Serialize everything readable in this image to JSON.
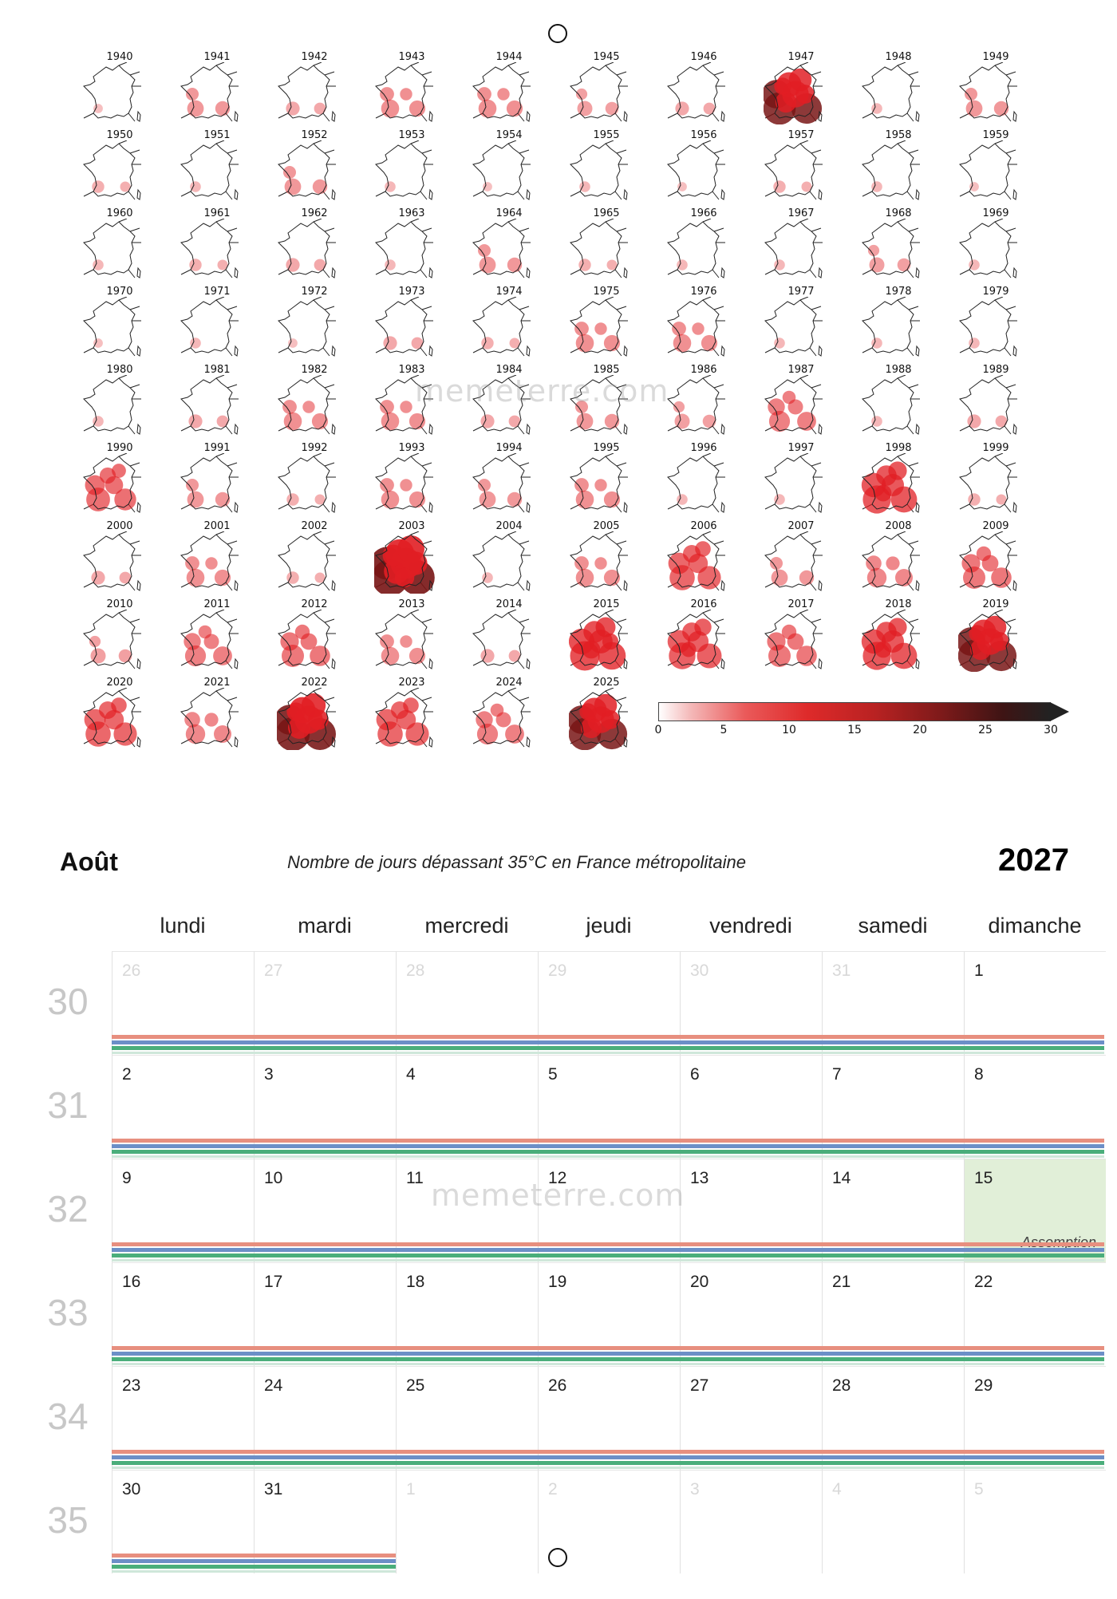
{
  "maps": {
    "years": [
      1940,
      1941,
      1942,
      1943,
      1944,
      1945,
      1946,
      1947,
      1948,
      1949,
      1950,
      1951,
      1952,
      1953,
      1954,
      1955,
      1956,
      1957,
      1958,
      1959,
      1960,
      1961,
      1962,
      1963,
      1964,
      1965,
      1966,
      1967,
      1968,
      1969,
      1970,
      1971,
      1972,
      1973,
      1974,
      1975,
      1976,
      1977,
      1978,
      1979,
      1980,
      1981,
      1982,
      1983,
      1984,
      1985,
      1986,
      1987,
      1988,
      1989,
      1990,
      1991,
      1992,
      1993,
      1994,
      1995,
      1996,
      1997,
      1998,
      1999,
      2000,
      2001,
      2002,
      2003,
      2004,
      2005,
      2006,
      2007,
      2008,
      2009,
      2010,
      2011,
      2012,
      2013,
      2014,
      2015,
      2016,
      2017,
      2018,
      2019,
      2020,
      2021,
      2022,
      2023,
      2024,
      2025
    ],
    "intensity": [
      0.05,
      0.3,
      0.2,
      0.35,
      0.35,
      0.25,
      0.2,
      0.85,
      0.1,
      0.3,
      0.15,
      0.1,
      0.3,
      0.1,
      0.05,
      0.1,
      0.05,
      0.15,
      0.1,
      0.05,
      0.1,
      0.15,
      0.2,
      0.1,
      0.3,
      0.15,
      0.1,
      0.1,
      0.25,
      0.1,
      0.05,
      0.1,
      0.05,
      0.2,
      0.15,
      0.35,
      0.35,
      0.1,
      0.1,
      0.1,
      0.1,
      0.2,
      0.35,
      0.35,
      0.2,
      0.3,
      0.25,
      0.45,
      0.1,
      0.2,
      0.55,
      0.3,
      0.15,
      0.35,
      0.3,
      0.35,
      0.1,
      0.1,
      0.7,
      0.15,
      0.2,
      0.35,
      0.15,
      1.0,
      0.1,
      0.35,
      0.6,
      0.3,
      0.4,
      0.5,
      0.25,
      0.45,
      0.5,
      0.35,
      0.2,
      0.75,
      0.65,
      0.5,
      0.7,
      0.85,
      0.6,
      0.4,
      0.9,
      0.6,
      0.45,
      0.85
    ],
    "colorbar_ticks": [
      "0",
      "5",
      "10",
      "15",
      "20",
      "25",
      "30"
    ],
    "colorbar_range": [
      0,
      30
    ]
  },
  "watermark": "memeterre.com",
  "header": {
    "month": "Août",
    "subtitle": "Nombre de jours dépassant 35°C en France métropolitaine",
    "year": "2027"
  },
  "calendar": {
    "day_names": [
      "lundi",
      "mardi",
      "mercredi",
      "jeudi",
      "vendredi",
      "samedi",
      "dimanche"
    ],
    "weeks": [
      {
        "num": "30",
        "days": [
          {
            "n": "26",
            "other": true
          },
          {
            "n": "27",
            "other": true
          },
          {
            "n": "28",
            "other": true
          },
          {
            "n": "29",
            "other": true
          },
          {
            "n": "30",
            "other": true
          },
          {
            "n": "31",
            "other": true
          },
          {
            "n": "1"
          }
        ]
      },
      {
        "num": "31",
        "days": [
          {
            "n": "2"
          },
          {
            "n": "3"
          },
          {
            "n": "4"
          },
          {
            "n": "5"
          },
          {
            "n": "6"
          },
          {
            "n": "7"
          },
          {
            "n": "8"
          }
        ]
      },
      {
        "num": "32",
        "days": [
          {
            "n": "9"
          },
          {
            "n": "10"
          },
          {
            "n": "11"
          },
          {
            "n": "12"
          },
          {
            "n": "13"
          },
          {
            "n": "14"
          },
          {
            "n": "15",
            "holiday": true,
            "event": "Assomption"
          }
        ]
      },
      {
        "num": "33",
        "days": [
          {
            "n": "16"
          },
          {
            "n": "17"
          },
          {
            "n": "18"
          },
          {
            "n": "19"
          },
          {
            "n": "20"
          },
          {
            "n": "21"
          },
          {
            "n": "22"
          }
        ]
      },
      {
        "num": "34",
        "days": [
          {
            "n": "23"
          },
          {
            "n": "24"
          },
          {
            "n": "25"
          },
          {
            "n": "26"
          },
          {
            "n": "27"
          },
          {
            "n": "28"
          },
          {
            "n": "29"
          }
        ]
      },
      {
        "num": "35",
        "days": [
          {
            "n": "30"
          },
          {
            "n": "31"
          },
          {
            "n": "1",
            "other": true
          },
          {
            "n": "2",
            "other": true
          },
          {
            "n": "3",
            "other": true
          },
          {
            "n": "4",
            "other": true
          },
          {
            "n": "5",
            "other": true
          }
        ]
      }
    ],
    "colors": {
      "stripe_1": "#e78f7f",
      "stripe_2": "#6c8fc7",
      "stripe_3": "#4aae7b",
      "holiday": "#e1efd8"
    }
  }
}
